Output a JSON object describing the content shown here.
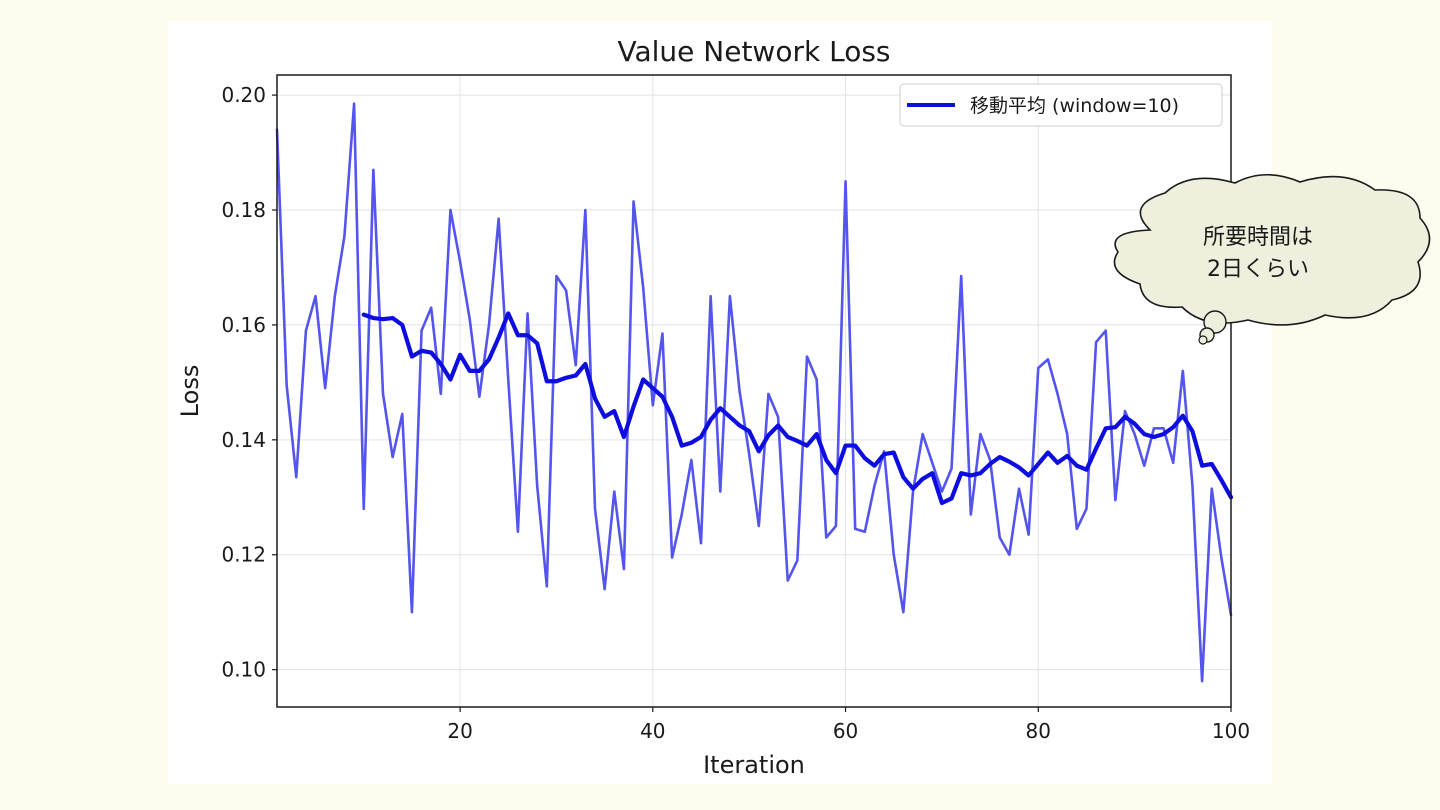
{
  "chart_data": {
    "type": "line",
    "title": "Value Network Loss",
    "xlabel": "Iteration",
    "ylabel": "Loss",
    "xlim": [
      1,
      100
    ],
    "ylim": [
      0.0935,
      0.2035
    ],
    "xticks": [
      20,
      40,
      60,
      80,
      100
    ],
    "yticks": [
      0.1,
      0.12,
      0.14,
      0.16,
      0.18,
      0.2
    ],
    "ytick_labels": [
      "0.10",
      "0.12",
      "0.14",
      "0.16",
      "0.18",
      "0.20"
    ],
    "grid": true,
    "legend_position": "top-right",
    "series": [
      {
        "role": "raw",
        "color": "#4b4bee",
        "x_start": 1,
        "values": [
          0.194,
          0.1495,
          0.1335,
          0.159,
          0.165,
          0.149,
          0.165,
          0.1755,
          0.1985,
          0.128,
          0.187,
          0.148,
          0.137,
          0.1445,
          0.11,
          0.159,
          0.163,
          0.148,
          0.18,
          0.171,
          0.161,
          0.1475,
          0.16,
          0.1785,
          0.1505,
          0.124,
          0.162,
          0.132,
          0.1145,
          0.1685,
          0.166,
          0.153,
          0.18,
          0.128,
          0.114,
          0.131,
          0.1175,
          0.1815,
          0.1665,
          0.146,
          0.1585,
          0.1195,
          0.127,
          0.1365,
          0.122,
          0.165,
          0.131,
          0.165,
          0.1485,
          0.1375,
          0.125,
          0.148,
          0.144,
          0.1155,
          0.119,
          0.1545,
          0.1505,
          0.123,
          0.125,
          0.185,
          0.1245,
          0.124,
          0.132,
          0.138,
          0.12,
          0.11,
          0.131,
          0.141,
          0.136,
          0.131,
          0.135,
          0.1685,
          0.127,
          0.141,
          0.1365,
          0.123,
          0.12,
          0.1315,
          0.1235,
          0.1525,
          0.154,
          0.148,
          0.141,
          0.1245,
          0.128,
          0.157,
          0.159,
          0.1295,
          0.145,
          0.141,
          0.1355,
          0.142,
          0.142,
          0.136,
          0.152,
          0.132,
          0.098,
          0.1315,
          0.1195,
          0.1095
        ]
      },
      {
        "role": "moving_average",
        "name": "移動平均 (window=10)",
        "color": "#0d0ddf",
        "x_start": 10,
        "values": [
          0.1618,
          0.1612,
          0.161,
          0.1612,
          0.16,
          0.1545,
          0.1555,
          0.1552,
          0.1532,
          0.1505,
          0.1548,
          0.152,
          0.152,
          0.154,
          0.1578,
          0.162,
          0.1582,
          0.1582,
          0.1568,
          0.1502,
          0.1502,
          0.1508,
          0.1512,
          0.1532,
          0.1472,
          0.144,
          0.145,
          0.1405,
          0.1458,
          0.1505,
          0.149,
          0.1475,
          0.144,
          0.139,
          0.1395,
          0.1405,
          0.1435,
          0.1455,
          0.144,
          0.1425,
          0.1415,
          0.138,
          0.1408,
          0.1425,
          0.1405,
          0.1398,
          0.139,
          0.141,
          0.1365,
          0.1342,
          0.139,
          0.139,
          0.1368,
          0.1355,
          0.1375,
          0.1378,
          0.1335,
          0.1315,
          0.1332,
          0.1342,
          0.129,
          0.1298,
          0.1342,
          0.1338,
          0.1342,
          0.1358,
          0.137,
          0.1362,
          0.1352,
          0.1338,
          0.1358,
          0.1378,
          0.136,
          0.1372,
          0.1355,
          0.1348,
          0.1385,
          0.142,
          0.1422,
          0.144,
          0.1428,
          0.141,
          0.1405,
          0.141,
          0.1422,
          0.1442,
          0.1415,
          0.1355,
          0.1358,
          0.133,
          0.13
        ]
      }
    ]
  },
  "callout": {
    "line1": "所要時間は",
    "line2": "2日くらい"
  }
}
